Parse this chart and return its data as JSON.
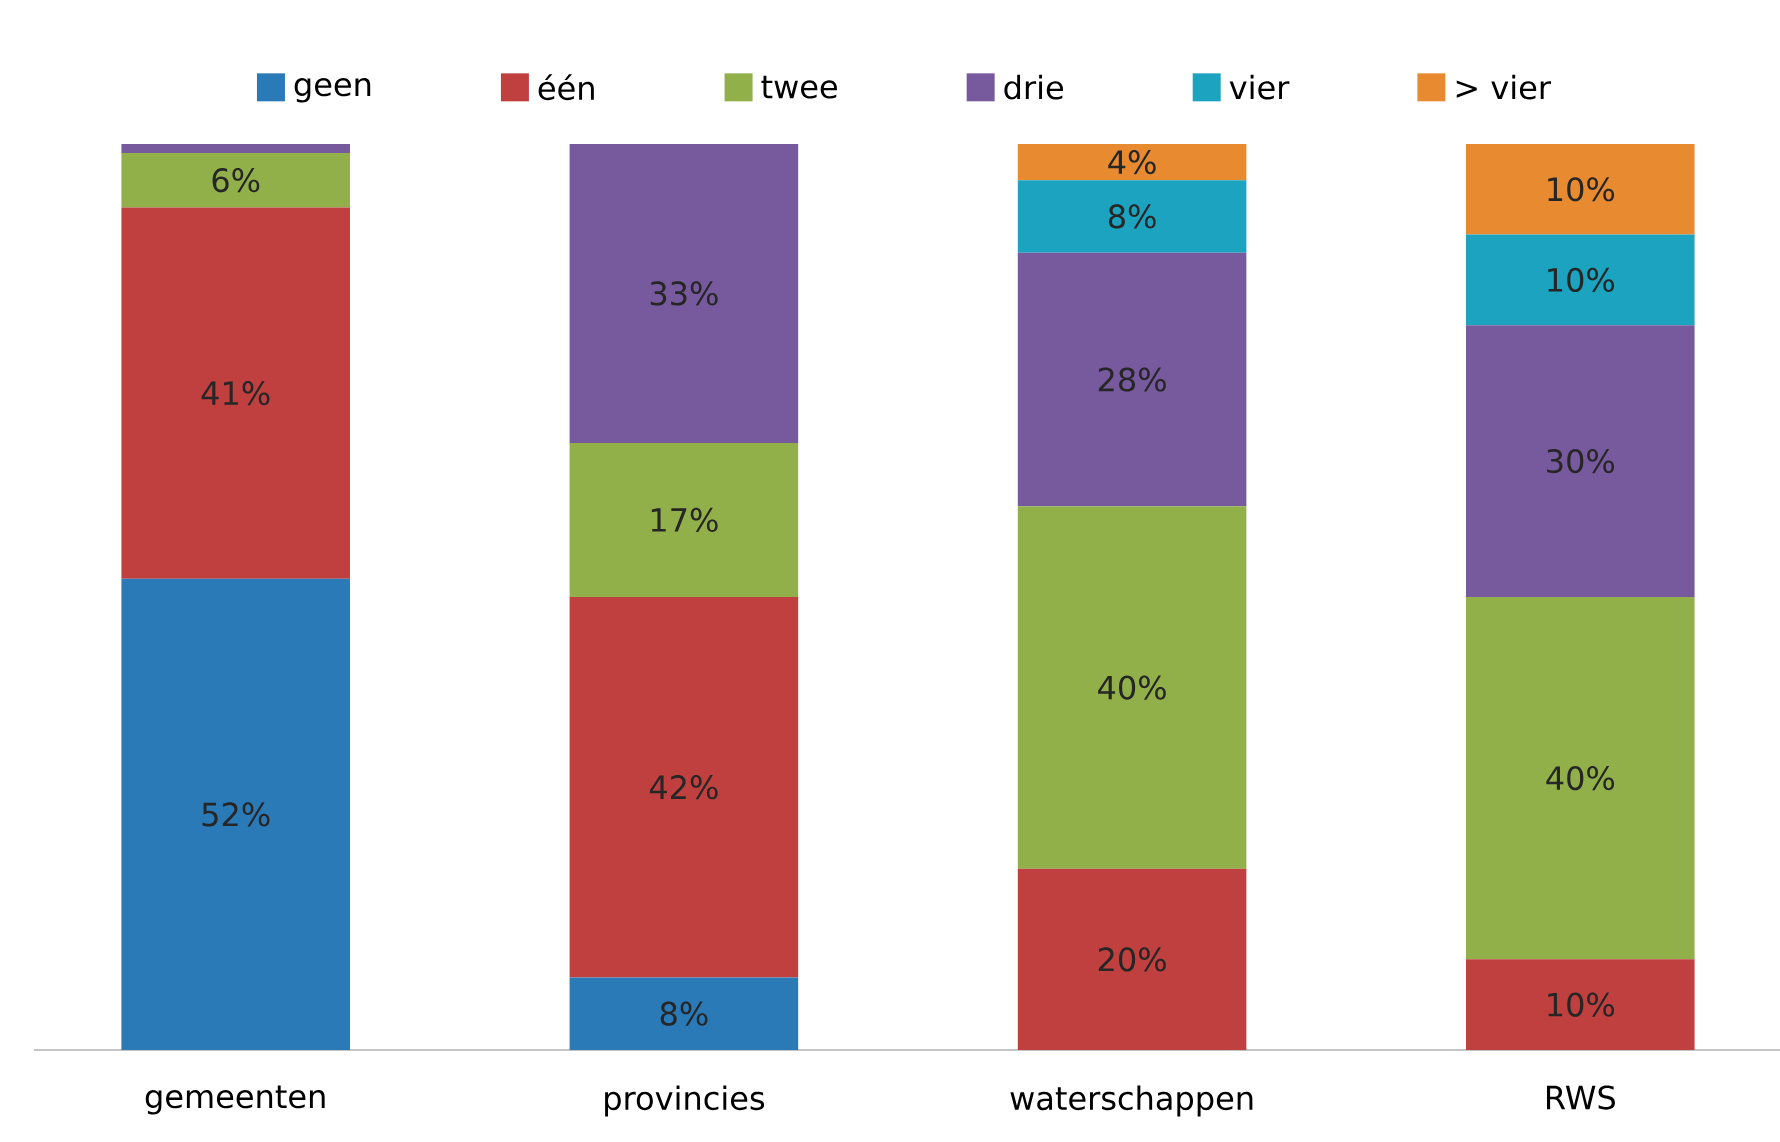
{
  "chart_data": {
    "type": "bar",
    "stacked": true,
    "legend": "top",
    "categories": [
      "gemeenten",
      "provincies",
      "waterschappen",
      "RWS"
    ],
    "series": [
      {
        "name": "geen",
        "color": "#2a7ab8",
        "values": [
          52,
          8,
          null,
          null
        ],
        "value_labels": [
          "52%",
          "8%",
          null,
          null
        ]
      },
      {
        "name": "één",
        "color": "#c0403f",
        "values": [
          41,
          42,
          20,
          10
        ],
        "value_labels": [
          "41%",
          "42%",
          "20%",
          "10%"
        ]
      },
      {
        "name": "twee",
        "color": "#92b04a",
        "values": [
          6,
          17,
          40,
          40
        ],
        "value_labels": [
          "6%",
          "17%",
          "40%",
          "40%"
        ]
      },
      {
        "name": "drie",
        "color": "#775a9e",
        "values": [
          1,
          33,
          28,
          30
        ],
        "value_labels": [
          null,
          "33%",
          "28%",
          "30%"
        ]
      },
      {
        "name": "vier",
        "color": "#1ba3c0",
        "values": [
          null,
          null,
          8,
          10
        ],
        "value_labels": [
          null,
          null,
          "8%",
          "10%"
        ]
      },
      {
        "name": "> vier",
        "color": "#e88a30",
        "values": [
          null,
          null,
          4,
          10
        ],
        "value_labels": [
          null,
          null,
          "4%",
          "10%"
        ]
      }
    ]
  }
}
